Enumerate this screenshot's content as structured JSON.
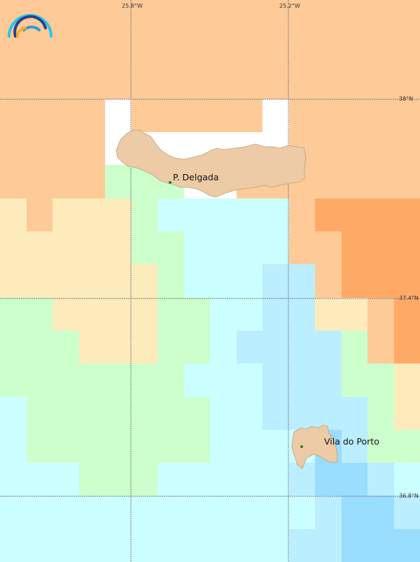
{
  "palette": {
    "O": "#FECA98",
    "D": "#FEAA66",
    "Y": "#FEEBBC",
    "G": "#CCFFCC",
    "C": "#CCFFFF",
    "L": "#BBEEFF",
    "B": "#99DDFF",
    "W": "#FFFFFF"
  },
  "grid_rows": [
    "OOOOOOOOOOOOOOOO",
    "OOOOOOOOOOOOOOOO",
    "OOOOOOOOOOOOOOOO",
    "OOOOWOOOOOWOOOOO",
    "OOOOWWWWWWWOOOOO",
    "OOOOGGGWWOOOOOOO",
    "YOYYYGCCCCCODDDD",
    "YYYYYGGCCCCOODDD",
    "YYYYYYGCCCLLODDD",
    "GGYYYYGGCCLLYYOD",
    "GGGYYYGGCLLLLGOD",
    "GGGGGGGCCCLLLGGY",
    "CGGGGGGGCCLLLLGY",
    "CGGGGGGGCCCCBLGG",
    "CCCGGGCCCCCLBBLC",
    "CCCCCCCCCCCCLBBL",
    "CCCCCCCCCCCLLBBB"
  ],
  "graticule": {
    "longitudes": [
      "25.8°W",
      "25.2°W"
    ],
    "latitudes": [
      "38°N",
      "37.4°N",
      "36.8°N"
    ]
  },
  "places": [
    {
      "name": "P. Delgada"
    },
    {
      "name": "Vila do Porto"
    }
  ],
  "land_color": "#EDCBA6",
  "city_marker_color": "#1a8a1a",
  "logo": {
    "icon": "rainbow-arcs-logo"
  }
}
